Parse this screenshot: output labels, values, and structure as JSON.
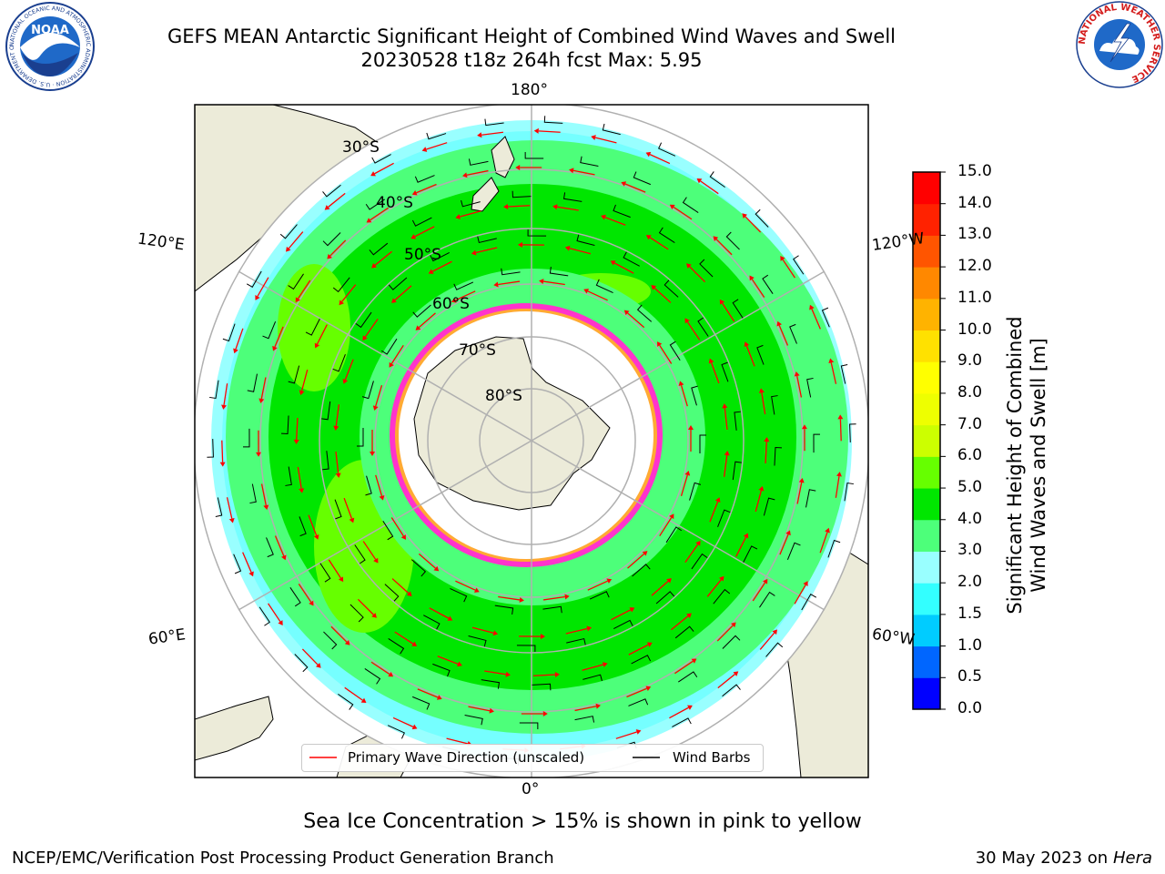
{
  "header": {
    "title_line1": "GEFS MEAN Antarctic Significant Height of Combined Wind Waves and Swell",
    "title_line2": "20230528 t18z 264h fcst   Max: 5.95",
    "noaa_logo_text": "NOAA",
    "noaa_ring_text": "NATIONAL OCEANIC AND ATMOSPHERIC ADMINISTRATION · U.S. DEPARTMENT OF COMMERCE",
    "nws_ring_text": "NATIONAL WEATHER SERVICE"
  },
  "map": {
    "projection": "South Polar Stereographic",
    "longitude_labels": {
      "top": "180°",
      "bottom": "0°",
      "left_upper": "120°E",
      "left_lower": "60°E",
      "right_upper": "120°W",
      "right_lower": "60°W"
    },
    "latitude_labels": [
      "30°S",
      "40°S",
      "50°S",
      "60°S",
      "70°S",
      "80°S"
    ],
    "legend": {
      "wave_direction": "Primary Wave Direction (unscaled)",
      "wind_barbs": "Wind Barbs"
    },
    "colors": {
      "land": "#ecebd9",
      "wave_arrow": "#ff0000",
      "wind_barb": "#000000",
      "sea_ice": "#ff33cc"
    }
  },
  "colorbar": {
    "title_line1": "Significant Height of Combined",
    "title_line2": "Wind Waves and Swell [m]",
    "tick_labels": [
      "0.0",
      "0.5",
      "1.0",
      "1.5",
      "2.0",
      "3.0",
      "4.0",
      "5.0",
      "6.0",
      "7.0",
      "8.0",
      "9.0",
      "10.0",
      "11.0",
      "12.0",
      "13.0",
      "14.0",
      "15.0"
    ],
    "levels": [
      0,
      0.5,
      1.0,
      1.5,
      2.0,
      3.0,
      4.0,
      5.0,
      6.0,
      7.0,
      8.0,
      9.0,
      10.0,
      11.0,
      12.0,
      13.0,
      14.0,
      15.0
    ],
    "colors": [
      "#0000ff",
      "#0066ff",
      "#00ccff",
      "#33ffff",
      "#99ffff",
      "#4dff7a",
      "#00e600",
      "#66ff00",
      "#ccff00",
      "#eeff00",
      "#ffff00",
      "#ffe100",
      "#ffb300",
      "#ff8800",
      "#ff5500",
      "#ff2200",
      "#ff0000"
    ]
  },
  "caption": "Sea Ice Concentration > 15% is shown in pink to yellow",
  "footer": {
    "left": "NCEP/EMC/Verification Post Processing Product Generation Branch",
    "right_date": "30 May 2023 on",
    "right_machine": "Hera"
  }
}
